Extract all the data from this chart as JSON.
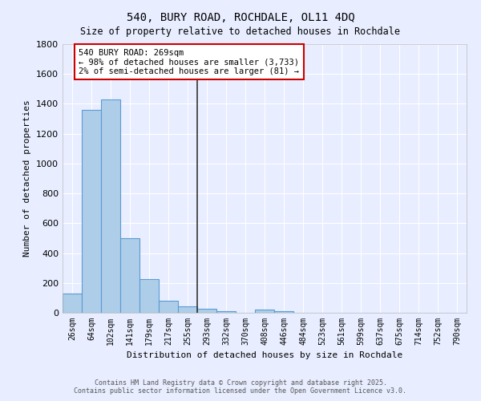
{
  "title": "540, BURY ROAD, ROCHDALE, OL11 4DQ",
  "subtitle": "Size of property relative to detached houses in Rochdale",
  "xlabel": "Distribution of detached houses by size in Rochdale",
  "ylabel": "Number of detached properties",
  "categories": [
    "26sqm",
    "64sqm",
    "102sqm",
    "141sqm",
    "179sqm",
    "217sqm",
    "255sqm",
    "293sqm",
    "332sqm",
    "370sqm",
    "408sqm",
    "446sqm",
    "484sqm",
    "523sqm",
    "561sqm",
    "599sqm",
    "637sqm",
    "675sqm",
    "714sqm",
    "752sqm",
    "790sqm"
  ],
  "values": [
    130,
    1360,
    1430,
    500,
    225,
    80,
    45,
    28,
    12,
    0,
    20,
    10,
    0,
    0,
    0,
    0,
    0,
    0,
    0,
    0,
    0
  ],
  "bar_color": "#aecde8",
  "bar_edge_color": "#5b9bd5",
  "vline_x_idx": 7,
  "vline_color": "#333333",
  "annotation_text": "540 BURY ROAD: 269sqm\n← 98% of detached houses are smaller (3,733)\n2% of semi-detached houses are larger (81) →",
  "annotation_box_color": "#ffffff",
  "annotation_box_edge_color": "#cc0000",
  "ylim": [
    0,
    1800
  ],
  "yticks": [
    0,
    200,
    400,
    600,
    800,
    1000,
    1200,
    1400,
    1600,
    1800
  ],
  "background_color": "#e8eeff",
  "grid_color": "#ffffff",
  "footer_line1": "Contains HM Land Registry data © Crown copyright and database right 2025.",
  "footer_line2": "Contains public sector information licensed under the Open Government Licence v3.0."
}
